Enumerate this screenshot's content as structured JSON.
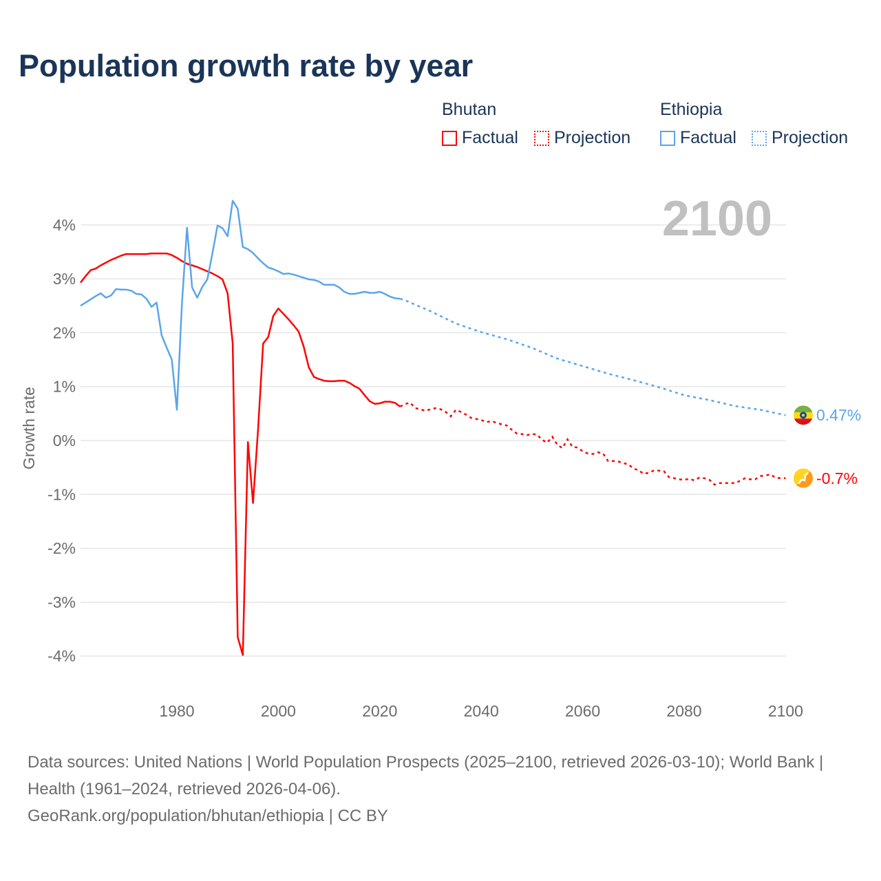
{
  "title": "Population growth rate by year",
  "legend": {
    "groups": [
      {
        "name": "Bhutan",
        "factual": "Factual",
        "projection": "Projection"
      },
      {
        "name": "Ethiopia",
        "factual": "Factual",
        "projection": "Projection"
      }
    ]
  },
  "year_label": "2100",
  "footer": {
    "line1": "Data sources: United Nations | World Population Prospects (2025–2100, retrieved 2026-03-10); World Bank | Health (1961–2024, retrieved 2026-04-06).",
    "line2": "GeoRank.org/population/bhutan/ethiopia | CC BY"
  },
  "chart_data": {
    "type": "line",
    "title": "Population growth rate by year",
    "ylabel": "Growth rate",
    "xlabel": "",
    "xlim": [
      1961,
      2100
    ],
    "ylim": [
      -4,
      4.5
    ],
    "x_ticks": [
      "1980",
      "2000",
      "2020",
      "2040",
      "2060",
      "2080",
      "2100"
    ],
    "y_ticks": [
      "4%",
      "3%",
      "2%",
      "1%",
      "0%",
      "-1%",
      "-2%",
      "-3%",
      "-4%"
    ],
    "y_tick_values": [
      4,
      3,
      2,
      1,
      0,
      -1,
      -2,
      -3,
      -4
    ],
    "x_tick_values": [
      1980,
      2000,
      2020,
      2040,
      2060,
      2080,
      2100
    ],
    "grid": true,
    "series": [
      {
        "name": "Bhutan",
        "color": "#ff0000",
        "end_label": "-0.7%",
        "factual_start": 1961,
        "factual": [
          2.93,
          3.05,
          3.16,
          3.19,
          3.25,
          3.3,
          3.35,
          3.39,
          3.43,
          3.46,
          3.46,
          3.46,
          3.46,
          3.46,
          3.47,
          3.47,
          3.47,
          3.47,
          3.44,
          3.39,
          3.33,
          3.28,
          3.25,
          3.22,
          3.18,
          3.14,
          3.1,
          3.05,
          2.99,
          2.73,
          1.8,
          -3.65,
          -3.98,
          -0.03,
          -1.16,
          0.2,
          1.8,
          1.92,
          2.31,
          2.45,
          2.35,
          2.25,
          2.14,
          2.02,
          1.74,
          1.36,
          1.18,
          1.14,
          1.11,
          1.1,
          1.1,
          1.11,
          1.11,
          1.07,
          1.01,
          0.96,
          0.84,
          0.73,
          0.68,
          0.69,
          0.72,
          0.72,
          0.7,
          0.63
        ],
        "projection_start": 2025,
        "projection": [
          0.68,
          0.7,
          0.6,
          0.58,
          0.55,
          0.58,
          0.6,
          0.58,
          0.53,
          0.45,
          0.57,
          0.53,
          0.48,
          0.42,
          0.4,
          0.38,
          0.34,
          0.36,
          0.33,
          0.3,
          0.28,
          0.2,
          0.13,
          0.12,
          0.1,
          0.12,
          0.11,
          0.01,
          -0.04,
          0.07,
          -0.08,
          -0.14,
          0.02,
          -0.12,
          -0.13,
          -0.2,
          -0.24,
          -0.25,
          -0.22,
          -0.24,
          -0.38,
          -0.38,
          -0.39,
          -0.42,
          -0.44,
          -0.52,
          -0.55,
          -0.62,
          -0.6,
          -0.56,
          -0.56,
          -0.57,
          -0.68,
          -0.7,
          -0.72,
          -0.73,
          -0.71,
          -0.74,
          -0.69,
          -0.7,
          -0.73,
          -0.82,
          -0.79,
          -0.79,
          -0.79,
          -0.79,
          -0.75,
          -0.7,
          -0.72,
          -0.72,
          -0.66,
          -0.65,
          -0.63,
          -0.69,
          -0.7,
          -0.7
        ]
      },
      {
        "name": "Ethiopia",
        "color": "#5aa5ea",
        "end_label": "0.47%",
        "factual_start": 1961,
        "factual": [
          2.5,
          2.56,
          2.62,
          2.68,
          2.73,
          2.65,
          2.69,
          2.81,
          2.8,
          2.8,
          2.78,
          2.72,
          2.71,
          2.63,
          2.48,
          2.56,
          1.95,
          1.72,
          1.5,
          0.57,
          2.55,
          3.95,
          2.84,
          2.65,
          2.85,
          2.99,
          3.47,
          3.99,
          3.94,
          3.79,
          4.45,
          4.3,
          3.59,
          3.55,
          3.48,
          3.38,
          3.29,
          3.21,
          3.18,
          3.14,
          3.09,
          3.1,
          3.08,
          3.05,
          3.02,
          2.99,
          2.98,
          2.95,
          2.89,
          2.89,
          2.89,
          2.84,
          2.76,
          2.72,
          2.72,
          2.74,
          2.76,
          2.74,
          2.74,
          2.76,
          2.72,
          2.67,
          2.64,
          2.63
        ],
        "projection_years": [
          2025,
          2030,
          2035,
          2040,
          2045,
          2050,
          2055,
          2060,
          2065,
          2070,
          2075,
          2080,
          2085,
          2090,
          2095,
          2100
        ],
        "projection": [
          2.6,
          2.4,
          2.17,
          2.01,
          1.88,
          1.72,
          1.52,
          1.38,
          1.24,
          1.12,
          0.99,
          0.84,
          0.75,
          0.64,
          0.57,
          0.47
        ]
      }
    ]
  }
}
